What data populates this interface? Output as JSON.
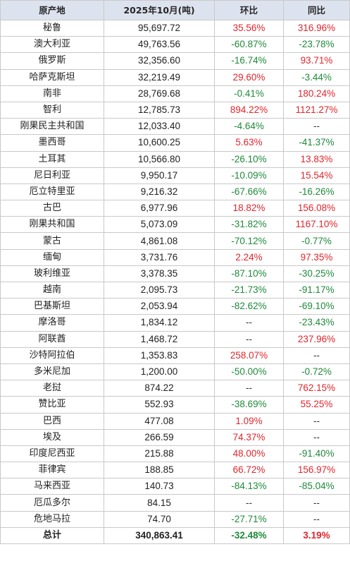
{
  "colors": {
    "header_bg": "#dce3ef",
    "positive": "#e0262c",
    "negative": "#1f8a3a",
    "border": "#c9c9c9"
  },
  "headers": {
    "origin": "原产地",
    "volume": "2025年10月(吨)",
    "mom": "环比",
    "yoy": "同比"
  },
  "rows": [
    {
      "origin": "秘鲁",
      "volume": "95,697.72",
      "mom": "35.56%",
      "mom_dir": "pos",
      "yoy": "316.96%",
      "yoy_dir": "pos"
    },
    {
      "origin": "澳大利亚",
      "volume": "49,763.56",
      "mom": "-60.87%",
      "mom_dir": "neg",
      "yoy": "-23.78%",
      "yoy_dir": "neg"
    },
    {
      "origin": "俄罗斯",
      "volume": "32,356.60",
      "mom": "-16.74%",
      "mom_dir": "neg",
      "yoy": "93.71%",
      "yoy_dir": "pos"
    },
    {
      "origin": "哈萨克斯坦",
      "volume": "32,219.49",
      "mom": "29.60%",
      "mom_dir": "pos",
      "yoy": "-3.44%",
      "yoy_dir": "neg"
    },
    {
      "origin": "南非",
      "volume": "28,769.68",
      "mom": "-0.41%",
      "mom_dir": "neg",
      "yoy": "180.24%",
      "yoy_dir": "pos"
    },
    {
      "origin": "智利",
      "volume": "12,785.73",
      "mom": "894.22%",
      "mom_dir": "pos",
      "yoy": "1121.27%",
      "yoy_dir": "pos"
    },
    {
      "origin": "刚果民主共和国",
      "volume": "12,033.40",
      "mom": "-4.64%",
      "mom_dir": "neg",
      "yoy": "--",
      "yoy_dir": "nil"
    },
    {
      "origin": "墨西哥",
      "volume": "10,600.25",
      "mom": "5.63%",
      "mom_dir": "pos",
      "yoy": "-41.37%",
      "yoy_dir": "neg"
    },
    {
      "origin": "土耳其",
      "volume": "10,566.80",
      "mom": "-26.10%",
      "mom_dir": "neg",
      "yoy": "13.83%",
      "yoy_dir": "pos"
    },
    {
      "origin": "尼日利亚",
      "volume": "9,950.17",
      "mom": "-10.09%",
      "mom_dir": "neg",
      "yoy": "15.54%",
      "yoy_dir": "pos"
    },
    {
      "origin": "厄立特里亚",
      "volume": "9,216.32",
      "mom": "-67.66%",
      "mom_dir": "neg",
      "yoy": "-16.26%",
      "yoy_dir": "neg"
    },
    {
      "origin": "古巴",
      "volume": "6,977.96",
      "mom": "18.82%",
      "mom_dir": "pos",
      "yoy": "156.08%",
      "yoy_dir": "pos"
    },
    {
      "origin": "刚果共和国",
      "volume": "5,073.09",
      "mom": "-31.82%",
      "mom_dir": "neg",
      "yoy": "1167.10%",
      "yoy_dir": "pos"
    },
    {
      "origin": "蒙古",
      "volume": "4,861.08",
      "mom": "-70.12%",
      "mom_dir": "neg",
      "yoy": "-0.77%",
      "yoy_dir": "neg"
    },
    {
      "origin": "缅甸",
      "volume": "3,731.76",
      "mom": "2.24%",
      "mom_dir": "pos",
      "yoy": "97.35%",
      "yoy_dir": "pos"
    },
    {
      "origin": "玻利维亚",
      "volume": "3,378.35",
      "mom": "-87.10%",
      "mom_dir": "neg",
      "yoy": "-30.25%",
      "yoy_dir": "neg"
    },
    {
      "origin": "越南",
      "volume": "2,095.73",
      "mom": "-21.73%",
      "mom_dir": "neg",
      "yoy": "-91.17%",
      "yoy_dir": "neg"
    },
    {
      "origin": "巴基斯坦",
      "volume": "2,053.94",
      "mom": "-82.62%",
      "mom_dir": "neg",
      "yoy": "-69.10%",
      "yoy_dir": "neg"
    },
    {
      "origin": "摩洛哥",
      "volume": "1,834.12",
      "mom": "--",
      "mom_dir": "nil",
      "yoy": "-23.43%",
      "yoy_dir": "neg"
    },
    {
      "origin": "阿联酋",
      "volume": "1,468.72",
      "mom": "--",
      "mom_dir": "nil",
      "yoy": "237.96%",
      "yoy_dir": "pos"
    },
    {
      "origin": "沙特阿拉伯",
      "volume": "1,353.83",
      "mom": "258.07%",
      "mom_dir": "pos",
      "yoy": "--",
      "yoy_dir": "nil"
    },
    {
      "origin": "多米尼加",
      "volume": "1,200.00",
      "mom": "-50.00%",
      "mom_dir": "neg",
      "yoy": "-0.72%",
      "yoy_dir": "neg"
    },
    {
      "origin": "老挝",
      "volume": "874.22",
      "mom": "--",
      "mom_dir": "nil",
      "yoy": "762.15%",
      "yoy_dir": "pos"
    },
    {
      "origin": "赞比亚",
      "volume": "552.93",
      "mom": "-38.69%",
      "mom_dir": "neg",
      "yoy": "55.25%",
      "yoy_dir": "pos"
    },
    {
      "origin": "巴西",
      "volume": "477.08",
      "mom": "1.09%",
      "mom_dir": "pos",
      "yoy": "--",
      "yoy_dir": "nil"
    },
    {
      "origin": "埃及",
      "volume": "266.59",
      "mom": "74.37%",
      "mom_dir": "pos",
      "yoy": "--",
      "yoy_dir": "nil"
    },
    {
      "origin": "印度尼西亚",
      "volume": "215.88",
      "mom": "48.00%",
      "mom_dir": "pos",
      "yoy": "-91.40%",
      "yoy_dir": "neg"
    },
    {
      "origin": "菲律宾",
      "volume": "188.85",
      "mom": "66.72%",
      "mom_dir": "pos",
      "yoy": "156.97%",
      "yoy_dir": "pos"
    },
    {
      "origin": "马来西亚",
      "volume": "140.73",
      "mom": "-84.13%",
      "mom_dir": "neg",
      "yoy": "-85.04%",
      "yoy_dir": "neg"
    },
    {
      "origin": "厄瓜多尔",
      "volume": "84.15",
      "mom": "--",
      "mom_dir": "nil",
      "yoy": "--",
      "yoy_dir": "nil"
    },
    {
      "origin": "危地马拉",
      "volume": "74.70",
      "mom": "-27.71%",
      "mom_dir": "neg",
      "yoy": "--",
      "yoy_dir": "nil"
    }
  ],
  "total": {
    "origin": "总计",
    "volume": "340,863.41",
    "mom": "-32.48%",
    "mom_dir": "neg",
    "yoy": "3.19%",
    "yoy_dir": "pos"
  }
}
